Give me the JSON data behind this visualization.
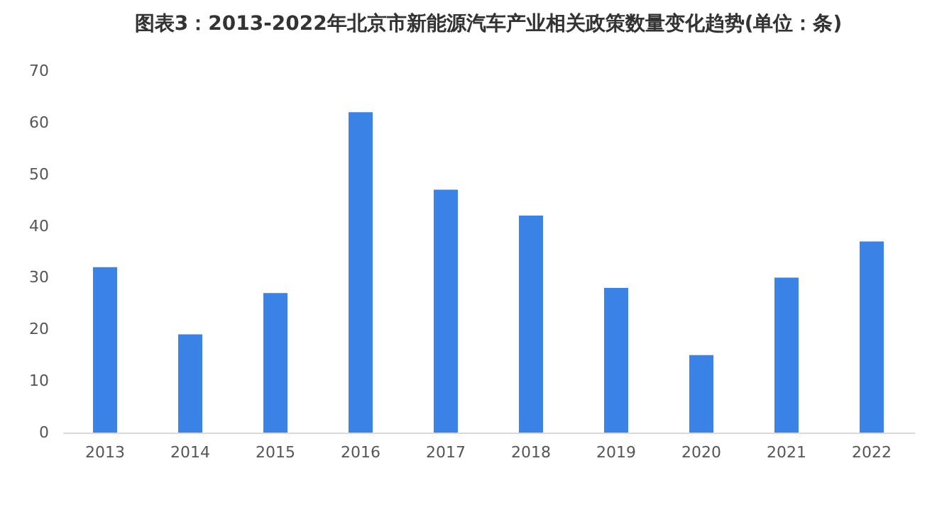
{
  "chart_data": {
    "type": "bar",
    "title": "图表3：2013-2022年北京市新能源汽车产业相关政策数量变化趋势(单位：条)",
    "categories": [
      "2013",
      "2014",
      "2015",
      "2016",
      "2017",
      "2018",
      "2019",
      "2020",
      "2021",
      "2022"
    ],
    "values": [
      32,
      19,
      27,
      62,
      47,
      42,
      28,
      15,
      30,
      37
    ],
    "color": "#3a82e6",
    "ylim": [
      0,
      70
    ],
    "yticks": [
      0,
      10,
      20,
      30,
      40,
      50,
      60,
      70
    ],
    "grid": false
  }
}
